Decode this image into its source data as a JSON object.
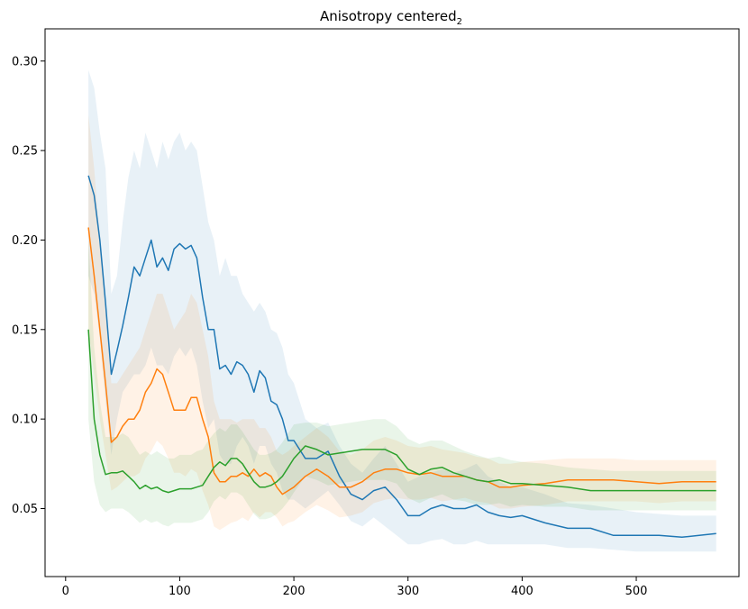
{
  "chart_data": {
    "type": "line",
    "title": "Anisotropy centered",
    "title_subscript": "2",
    "xlabel": "",
    "ylabel": "",
    "xlim": [
      -18,
      590
    ],
    "ylim": [
      0.012,
      0.318
    ],
    "xticks": [
      0,
      100,
      200,
      300,
      400,
      500
    ],
    "yticks": [
      0.05,
      0.1,
      0.15,
      0.2,
      0.25,
      0.3
    ],
    "ytick_labels": [
      "0.05",
      "0.10",
      "0.15",
      "0.20",
      "0.25",
      "0.30"
    ],
    "grid": false,
    "legend": "none",
    "x": [
      20,
      25,
      30,
      35,
      40,
      45,
      50,
      55,
      60,
      65,
      70,
      75,
      80,
      85,
      90,
      95,
      100,
      105,
      110,
      115,
      120,
      125,
      130,
      135,
      140,
      145,
      150,
      155,
      160,
      165,
      170,
      175,
      180,
      185,
      190,
      195,
      200,
      210,
      220,
      230,
      240,
      250,
      260,
      270,
      280,
      290,
      300,
      310,
      320,
      330,
      340,
      350,
      360,
      370,
      380,
      390,
      400,
      420,
      440,
      460,
      480,
      500,
      520,
      540,
      570
    ],
    "series": [
      {
        "name": "series-blue",
        "color": "#1f77b4",
        "values": [
          0.236,
          0.225,
          0.2,
          0.165,
          0.125,
          0.138,
          0.152,
          0.168,
          0.185,
          0.18,
          0.19,
          0.2,
          0.185,
          0.19,
          0.183,
          0.195,
          0.198,
          0.195,
          0.197,
          0.19,
          0.168,
          0.15,
          0.15,
          0.128,
          0.13,
          0.125,
          0.132,
          0.13,
          0.125,
          0.115,
          0.127,
          0.123,
          0.11,
          0.108,
          0.1,
          0.088,
          0.088,
          0.078,
          0.078,
          0.082,
          0.068,
          0.058,
          0.055,
          0.06,
          0.062,
          0.055,
          0.046,
          0.046,
          0.05,
          0.052,
          0.05,
          0.05,
          0.052,
          0.048,
          0.046,
          0.045,
          0.046,
          0.042,
          0.039,
          0.039,
          0.035,
          0.035,
          0.035,
          0.034,
          0.036
        ],
        "upper": [
          0.295,
          0.285,
          0.26,
          0.24,
          0.17,
          0.18,
          0.21,
          0.235,
          0.25,
          0.24,
          0.26,
          0.25,
          0.24,
          0.255,
          0.245,
          0.255,
          0.26,
          0.25,
          0.255,
          0.25,
          0.23,
          0.21,
          0.2,
          0.18,
          0.19,
          0.18,
          0.18,
          0.17,
          0.165,
          0.16,
          0.165,
          0.16,
          0.15,
          0.148,
          0.14,
          0.125,
          0.12,
          0.1,
          0.095,
          0.098,
          0.085,
          0.075,
          0.07,
          0.078,
          0.085,
          0.075,
          0.065,
          0.068,
          0.07,
          0.072,
          0.07,
          0.072,
          0.075,
          0.068,
          0.065,
          0.062,
          0.062,
          0.058,
          0.053,
          0.052,
          0.05,
          0.048,
          0.047,
          0.046,
          0.046
        ],
        "lower": [
          0.18,
          0.17,
          0.145,
          0.11,
          0.08,
          0.1,
          0.115,
          0.12,
          0.125,
          0.125,
          0.13,
          0.14,
          0.13,
          0.13,
          0.125,
          0.135,
          0.14,
          0.135,
          0.14,
          0.13,
          0.11,
          0.095,
          0.1,
          0.08,
          0.075,
          0.075,
          0.085,
          0.09,
          0.085,
          0.075,
          0.085,
          0.085,
          0.075,
          0.07,
          0.06,
          0.055,
          0.055,
          0.05,
          0.055,
          0.06,
          0.052,
          0.043,
          0.04,
          0.045,
          0.04,
          0.035,
          0.03,
          0.03,
          0.032,
          0.033,
          0.03,
          0.03,
          0.032,
          0.03,
          0.03,
          0.03,
          0.03,
          0.03,
          0.028,
          0.028,
          0.027,
          0.026,
          0.026,
          0.026,
          0.026
        ]
      },
      {
        "name": "series-orange",
        "color": "#ff7f0e",
        "values": [
          0.207,
          0.18,
          0.15,
          0.12,
          0.087,
          0.09,
          0.096,
          0.1,
          0.1,
          0.105,
          0.115,
          0.12,
          0.128,
          0.125,
          0.115,
          0.105,
          0.105,
          0.105,
          0.112,
          0.112,
          0.1,
          0.09,
          0.07,
          0.065,
          0.065,
          0.068,
          0.068,
          0.07,
          0.068,
          0.072,
          0.068,
          0.07,
          0.068,
          0.062,
          0.058,
          0.06,
          0.062,
          0.068,
          0.072,
          0.068,
          0.062,
          0.062,
          0.065,
          0.07,
          0.072,
          0.072,
          0.07,
          0.069,
          0.07,
          0.068,
          0.068,
          0.068,
          0.066,
          0.065,
          0.062,
          0.062,
          0.063,
          0.064,
          0.066,
          0.066,
          0.066,
          0.065,
          0.064,
          0.065,
          0.065
        ],
        "upper": [
          0.27,
          0.24,
          0.2,
          0.16,
          0.12,
          0.12,
          0.125,
          0.13,
          0.135,
          0.14,
          0.15,
          0.16,
          0.17,
          0.17,
          0.16,
          0.15,
          0.155,
          0.16,
          0.17,
          0.165,
          0.15,
          0.135,
          0.11,
          0.1,
          0.1,
          0.1,
          0.098,
          0.1,
          0.1,
          0.1,
          0.095,
          0.095,
          0.09,
          0.082,
          0.08,
          0.082,
          0.085,
          0.09,
          0.095,
          0.09,
          0.082,
          0.08,
          0.083,
          0.088,
          0.09,
          0.088,
          0.085,
          0.084,
          0.085,
          0.083,
          0.082,
          0.081,
          0.079,
          0.078,
          0.075,
          0.075,
          0.076,
          0.077,
          0.078,
          0.078,
          0.078,
          0.077,
          0.077,
          0.077,
          0.077
        ],
        "lower": [
          0.15,
          0.125,
          0.1,
          0.08,
          0.06,
          0.062,
          0.065,
          0.068,
          0.068,
          0.07,
          0.078,
          0.082,
          0.088,
          0.085,
          0.078,
          0.07,
          0.07,
          0.068,
          0.072,
          0.07,
          0.06,
          0.052,
          0.04,
          0.038,
          0.04,
          0.042,
          0.043,
          0.045,
          0.043,
          0.048,
          0.045,
          0.048,
          0.048,
          0.045,
          0.04,
          0.042,
          0.043,
          0.048,
          0.052,
          0.049,
          0.045,
          0.046,
          0.048,
          0.053,
          0.055,
          0.056,
          0.055,
          0.055,
          0.056,
          0.054,
          0.055,
          0.056,
          0.054,
          0.053,
          0.05,
          0.05,
          0.051,
          0.052,
          0.054,
          0.054,
          0.054,
          0.054,
          0.053,
          0.054,
          0.054
        ]
      },
      {
        "name": "series-green",
        "color": "#2ca02c",
        "values": [
          0.15,
          0.1,
          0.08,
          0.069,
          0.07,
          0.07,
          0.071,
          0.068,
          0.065,
          0.061,
          0.063,
          0.061,
          0.062,
          0.06,
          0.059,
          0.06,
          0.061,
          0.061,
          0.061,
          0.062,
          0.063,
          0.068,
          0.073,
          0.076,
          0.074,
          0.078,
          0.078,
          0.075,
          0.07,
          0.065,
          0.062,
          0.062,
          0.063,
          0.065,
          0.068,
          0.073,
          0.078,
          0.085,
          0.083,
          0.08,
          0.081,
          0.082,
          0.083,
          0.083,
          0.083,
          0.08,
          0.072,
          0.069,
          0.072,
          0.073,
          0.07,
          0.068,
          0.066,
          0.065,
          0.066,
          0.064,
          0.064,
          0.063,
          0.062,
          0.06,
          0.06,
          0.06,
          0.06,
          0.06,
          0.06
        ],
        "upper": [
          0.2,
          0.14,
          0.11,
          0.09,
          0.09,
          0.09,
          0.092,
          0.09,
          0.085,
          0.08,
          0.082,
          0.08,
          0.082,
          0.08,
          0.078,
          0.078,
          0.08,
          0.08,
          0.08,
          0.082,
          0.083,
          0.088,
          0.092,
          0.095,
          0.093,
          0.097,
          0.097,
          0.093,
          0.088,
          0.083,
          0.08,
          0.08,
          0.081,
          0.083,
          0.087,
          0.092,
          0.097,
          0.098,
          0.098,
          0.096,
          0.097,
          0.098,
          0.099,
          0.1,
          0.1,
          0.096,
          0.089,
          0.086,
          0.088,
          0.088,
          0.085,
          0.082,
          0.08,
          0.078,
          0.079,
          0.077,
          0.076,
          0.075,
          0.073,
          0.072,
          0.071,
          0.071,
          0.071,
          0.071,
          0.071
        ],
        "lower": [
          0.1,
          0.065,
          0.052,
          0.048,
          0.05,
          0.05,
          0.05,
          0.048,
          0.045,
          0.042,
          0.044,
          0.042,
          0.043,
          0.041,
          0.04,
          0.042,
          0.042,
          0.042,
          0.042,
          0.043,
          0.044,
          0.048,
          0.054,
          0.057,
          0.055,
          0.059,
          0.059,
          0.057,
          0.052,
          0.047,
          0.044,
          0.044,
          0.045,
          0.047,
          0.05,
          0.054,
          0.059,
          0.068,
          0.066,
          0.063,
          0.064,
          0.065,
          0.066,
          0.066,
          0.066,
          0.064,
          0.056,
          0.053,
          0.056,
          0.058,
          0.055,
          0.054,
          0.052,
          0.052,
          0.053,
          0.051,
          0.052,
          0.051,
          0.051,
          0.049,
          0.049,
          0.049,
          0.049,
          0.049,
          0.049
        ]
      }
    ]
  }
}
